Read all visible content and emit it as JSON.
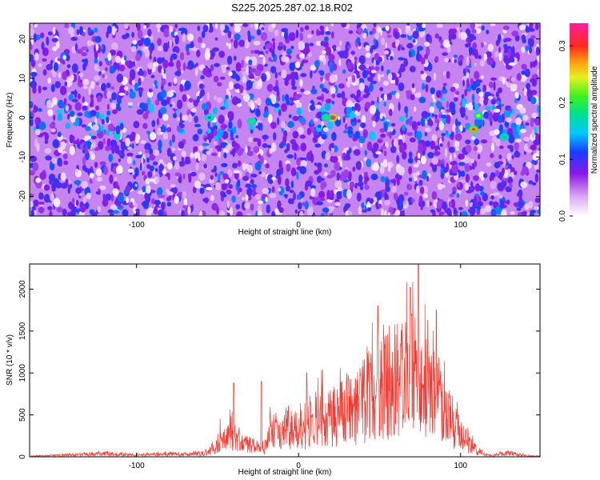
{
  "title": "S225.2025.287.02.18.R02",
  "colors": {
    "snr_line": "#ef3b32",
    "axis": "#000000",
    "background_light": "#ffffff"
  },
  "chart_data": [
    {
      "type": "heatmap",
      "title": "S225.2025.287.02.18.R02",
      "xlabel": "Height of straight line (km)",
      "ylabel": "Frequency (Hz)",
      "xlim": [
        -166,
        149
      ],
      "ylim": [
        -25,
        24
      ],
      "x_ticks": [
        -100,
        0,
        100
      ],
      "y_ticks": [
        -20,
        -10,
        0,
        10,
        20
      ],
      "colorbar": {
        "label": "Normalized spectral amplitude",
        "range": [
          0,
          0.34
        ],
        "ticks": [
          "0.0",
          "0.1",
          "0.2",
          "0.3"
        ],
        "colormap": "rainbow (white-violet-blue-cyan-green-yellow-orange-red-magenta)"
      },
      "hotspots": [
        {
          "x": 21,
          "y": 0,
          "value": 0.33
        },
        {
          "x": 108,
          "y": -3,
          "value": 0.31
        },
        {
          "x": 111,
          "y": 0.5,
          "value": 0.25
        },
        {
          "x": -29,
          "y": -1,
          "value": 0.2
        },
        {
          "x": 17,
          "y": 0,
          "value": 0.2
        },
        {
          "x": -55,
          "y": 0,
          "value": 0.12
        },
        {
          "x": 127,
          "y": -5,
          "value": 0.14
        }
      ],
      "background_level": 0.05
    },
    {
      "type": "line",
      "title": "",
      "xlabel": "Height of straight line (km)",
      "ylabel": "SNR (10 * v/v)",
      "xlim": [
        -166,
        149
      ],
      "ylim": [
        0,
        2300
      ],
      "x_ticks": [
        -100,
        0,
        100
      ],
      "y_ticks": [
        0,
        500,
        1000,
        1500,
        2000
      ],
      "series": [
        {
          "color": "#ef3b32",
          "x": [
            -166,
            -150,
            -130,
            -120,
            -110,
            -100,
            -90,
            -80,
            -70,
            -60,
            -55,
            -50,
            -45,
            -43,
            -40,
            -35,
            -30,
            -25,
            -20,
            -18,
            -15,
            -10,
            -5,
            0,
            5,
            10,
            15,
            20,
            25,
            30,
            35,
            40,
            45,
            50,
            55,
            60,
            65,
            70,
            75,
            80,
            85,
            90,
            95,
            100,
            105,
            110,
            115,
            120,
            125,
            130,
            135,
            140,
            149
          ],
          "y": [
            10,
            25,
            45,
            55,
            40,
            30,
            40,
            50,
            45,
            60,
            100,
            250,
            450,
            500,
            380,
            250,
            200,
            150,
            180,
            450,
            400,
            450,
            500,
            480,
            560,
            650,
            750,
            700,
            800,
            900,
            850,
            1000,
            1150,
            1250,
            1300,
            1400,
            1500,
            1650,
            1400,
            1250,
            1050,
            800,
            600,
            400,
            250,
            120,
            40,
            20,
            50,
            70,
            40,
            20,
            10
          ]
        }
      ],
      "envelope_peaks": [
        {
          "x": -40,
          "y": 880
        },
        {
          "x": -23,
          "y": 900
        },
        {
          "x": 5,
          "y": 1000
        },
        {
          "x": 49,
          "y": 1800
        },
        {
          "x": 69,
          "y": 2020
        },
        {
          "x": 74,
          "y": 2300
        },
        {
          "x": 85,
          "y": 1750
        }
      ]
    }
  ]
}
